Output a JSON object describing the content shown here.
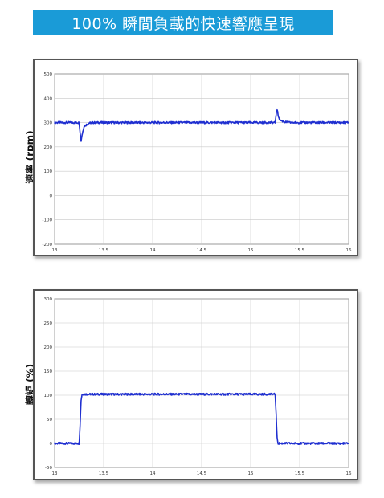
{
  "banner": {
    "title": "100% 瞬間負載的快速響應呈現"
  },
  "chart_data": [
    {
      "type": "line",
      "ylabel": "速率 (rpm)",
      "xlabel": "",
      "xlim": [
        13,
        16
      ],
      "ylim": [
        -200,
        500
      ],
      "xticks": [
        13,
        13.5,
        14,
        14.5,
        15,
        15.5,
        16
      ],
      "xtick_labels": [
        "13",
        "13.5",
        "14",
        "14.5",
        "15",
        "15.5",
        "16"
      ],
      "yticks": [
        -200,
        -100,
        0,
        100,
        200,
        300,
        400,
        500
      ],
      "ytick_labels": [
        "-200",
        "-100",
        "0",
        "100",
        "200",
        "300",
        "400",
        "500"
      ],
      "grid": true,
      "series": [
        {
          "color": "#1f2fd0",
          "x": [
            13,
            13.25,
            13.26,
            13.27,
            13.28,
            13.3,
            13.35,
            13.4,
            15.25,
            15.26,
            15.27,
            15.28,
            15.3,
            15.35,
            15.4,
            16
          ],
          "y": [
            300,
            300,
            260,
            225,
            250,
            285,
            298,
            300,
            300,
            335,
            355,
            330,
            310,
            302,
            300,
            300
          ]
        }
      ]
    },
    {
      "type": "line",
      "ylabel": "轉矩 (%)",
      "xlabel": "",
      "xlim": [
        13,
        16
      ],
      "ylim": [
        -50,
        300
      ],
      "xticks": [
        13,
        13.5,
        14,
        14.5,
        15,
        15.5,
        16
      ],
      "xtick_labels": [
        "13",
        "13.5",
        "14",
        "14.5",
        "15",
        "15.5",
        "16"
      ],
      "yticks": [
        -50,
        0,
        50,
        100,
        150,
        200,
        250,
        300
      ],
      "ytick_labels": [
        "-50",
        "0",
        "50",
        "100",
        "150",
        "200",
        "250",
        "300"
      ],
      "grid": true,
      "series": [
        {
          "color": "#1f2fd0",
          "x": [
            13,
            13.25,
            13.26,
            13.27,
            13.28,
            15.25,
            15.26,
            15.27,
            15.28,
            16
          ],
          "y": [
            0,
            0,
            40,
            90,
            102,
            102,
            60,
            10,
            0,
            0
          ]
        }
      ]
    }
  ]
}
